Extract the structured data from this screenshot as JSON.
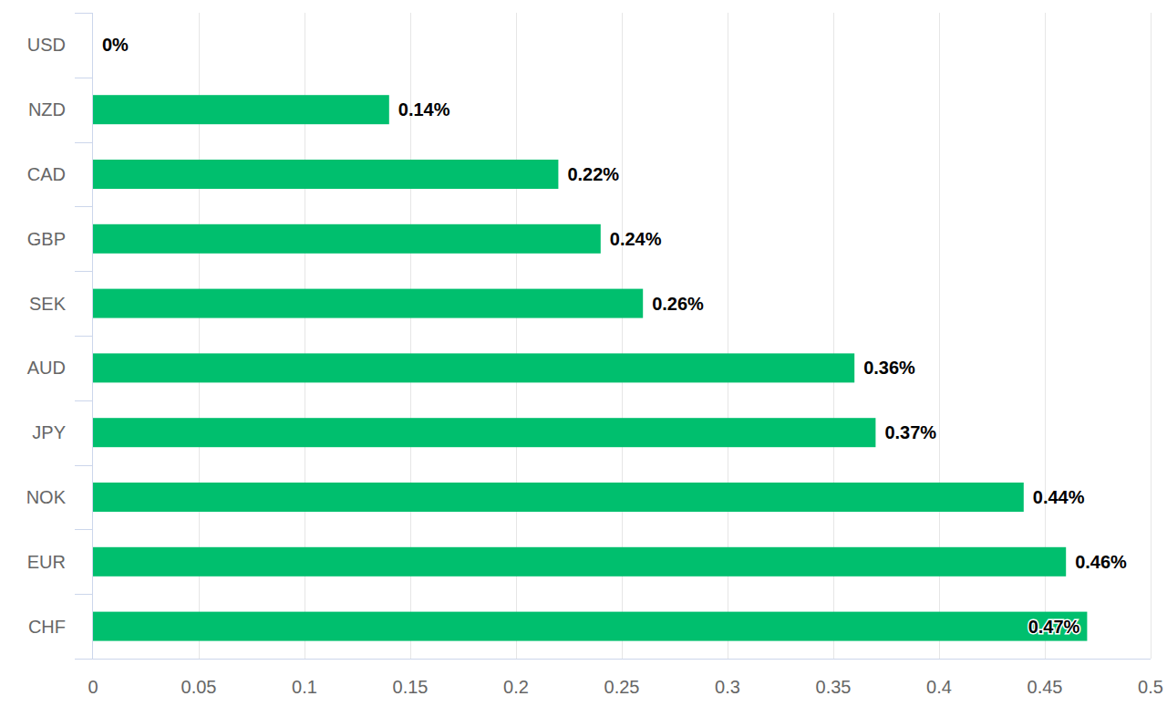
{
  "chart_data": {
    "type": "bar",
    "orientation": "horizontal",
    "categories": [
      "USD",
      "NZD",
      "CAD",
      "GBP",
      "SEK",
      "AUD",
      "JPY",
      "NOK",
      "EUR",
      "CHF"
    ],
    "values": [
      0,
      0.14,
      0.22,
      0.24,
      0.26,
      0.36,
      0.37,
      0.44,
      0.46,
      0.47
    ],
    "value_labels": [
      "0%",
      "0.14%",
      "0.22%",
      "0.24%",
      "0.26%",
      "0.36%",
      "0.37%",
      "0.44%",
      "0.46%",
      "0.47%"
    ],
    "color": "#00bf6e",
    "xlim": [
      0,
      0.5
    ],
    "xticks": [
      0,
      0.05,
      0.1,
      0.15,
      0.2,
      0.25,
      0.3,
      0.35,
      0.4,
      0.45,
      0.5
    ],
    "grid": true,
    "data_labels": true
  }
}
